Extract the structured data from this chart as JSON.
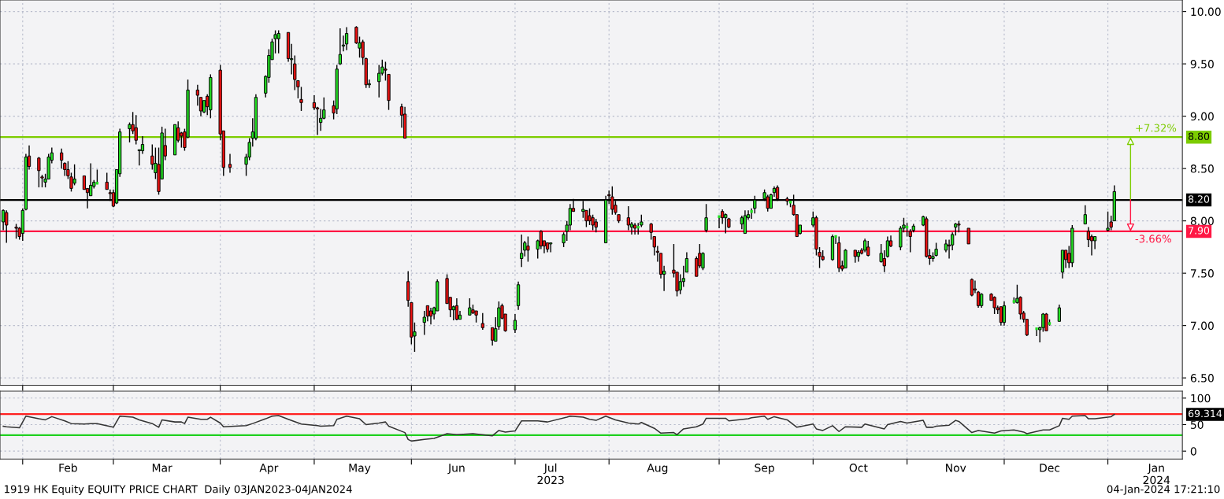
{
  "chart_data": [
    {
      "type": "candlestick",
      "x": [
        "2023-01-26",
        "2023-01-27",
        "2023-01-30",
        "2023-01-31",
        "2023-02-01",
        "2023-02-02",
        "2023-02-03",
        "2023-02-06",
        "2023-02-07",
        "2023-02-08",
        "2023-02-09",
        "2023-02-10",
        "2023-02-13",
        "2023-02-14",
        "2023-02-15",
        "2023-02-16",
        "2023-02-17",
        "2023-02-20",
        "2023-02-21",
        "2023-02-22",
        "2023-02-23",
        "2023-02-24",
        "2023-02-27",
        "2023-02-28",
        "2023-03-01",
        "2023-03-02",
        "2023-03-03",
        "2023-03-06",
        "2023-03-07",
        "2023-03-08",
        "2023-03-09",
        "2023-03-10",
        "2023-03-13",
        "2023-03-14",
        "2023-03-15",
        "2023-03-16",
        "2023-03-17",
        "2023-03-20",
        "2023-03-21",
        "2023-03-22",
        "2023-03-23",
        "2023-03-24",
        "2023-03-27",
        "2023-03-28",
        "2023-03-29",
        "2023-03-30",
        "2023-03-31",
        "2023-04-03",
        "2023-04-04",
        "2023-04-06",
        "2023-04-11",
        "2023-04-12",
        "2023-04-13",
        "2023-04-14",
        "2023-04-17",
        "2023-04-18",
        "2023-04-19",
        "2023-04-20",
        "2023-04-21",
        "2023-04-24",
        "2023-04-25",
        "2023-04-26",
        "2023-04-27",
        "2023-04-28",
        "2023-05-02",
        "2023-05-03",
        "2023-05-04",
        "2023-05-05",
        "2023-05-08",
        "2023-05-09",
        "2023-05-10",
        "2023-05-11",
        "2023-05-12",
        "2023-05-15",
        "2023-05-16",
        "2023-05-17",
        "2023-05-18",
        "2023-05-19",
        "2023-05-22",
        "2023-05-23",
        "2023-05-24",
        "2023-05-25",
        "2023-05-29",
        "2023-05-30",
        "2023-05-31",
        "2023-06-01",
        "2023-06-02",
        "2023-06-05",
        "2023-06-06",
        "2023-06-07",
        "2023-06-08",
        "2023-06-09",
        "2023-06-12",
        "2023-06-13",
        "2023-06-14",
        "2023-06-15",
        "2023-06-16",
        "2023-06-19",
        "2023-06-20",
        "2023-06-21",
        "2023-06-23",
        "2023-06-26",
        "2023-06-27",
        "2023-06-28",
        "2023-06-29",
        "2023-06-30",
        "2023-07-03",
        "2023-07-04",
        "2023-07-05",
        "2023-07-06",
        "2023-07-07",
        "2023-07-10",
        "2023-07-11",
        "2023-07-12",
        "2023-07-13",
        "2023-07-14",
        "2023-07-18",
        "2023-07-19",
        "2023-07-20",
        "2023-07-21",
        "2023-07-24",
        "2023-07-25",
        "2023-07-26",
        "2023-07-27",
        "2023-07-28",
        "2023-07-31",
        "2023-08-01",
        "2023-08-02",
        "2023-08-03",
        "2023-08-04",
        "2023-08-07",
        "2023-08-08",
        "2023-08-09",
        "2023-08-10",
        "2023-08-11",
        "2023-08-14",
        "2023-08-15",
        "2023-08-16",
        "2023-08-17",
        "2023-08-18",
        "2023-08-21",
        "2023-08-22",
        "2023-08-23",
        "2023-08-24",
        "2023-08-25",
        "2023-08-28",
        "2023-08-29",
        "2023-08-30",
        "2023-08-31",
        "2023-09-04",
        "2023-09-05",
        "2023-09-06",
        "2023-09-07",
        "2023-09-11",
        "2023-09-12",
        "2023-09-13",
        "2023-09-14",
        "2023-09-15",
        "2023-09-18",
        "2023-09-19",
        "2023-09-20",
        "2023-09-21",
        "2023-09-22",
        "2023-09-25",
        "2023-09-26",
        "2023-09-27",
        "2023-09-28",
        "2023-09-29",
        "2023-10-03",
        "2023-10-04",
        "2023-10-05",
        "2023-10-06",
        "2023-10-09",
        "2023-10-10",
        "2023-10-11",
        "2023-10-12",
        "2023-10-13",
        "2023-10-16",
        "2023-10-17",
        "2023-10-18",
        "2023-10-19",
        "2023-10-20",
        "2023-10-24",
        "2023-10-25",
        "2023-10-26",
        "2023-10-27",
        "2023-10-30",
        "2023-10-31",
        "2023-11-01",
        "2023-11-02",
        "2023-11-03",
        "2023-11-06",
        "2023-11-07",
        "2023-11-08",
        "2023-11-09",
        "2023-11-10",
        "2023-11-13",
        "2023-11-14",
        "2023-11-15",
        "2023-11-16",
        "2023-11-17",
        "2023-11-20",
        "2023-11-21",
        "2023-11-22",
        "2023-11-23",
        "2023-11-24",
        "2023-11-27",
        "2023-11-28",
        "2023-11-29",
        "2023-11-30",
        "2023-12-01",
        "2023-12-04",
        "2023-12-05",
        "2023-12-06",
        "2023-12-07",
        "2023-12-08",
        "2023-12-11",
        "2023-12-12",
        "2023-12-13",
        "2023-12-14",
        "2023-12-15",
        "2023-12-18",
        "2023-12-19",
        "2023-12-20",
        "2023-12-21",
        "2023-12-22",
        "2023-12-26",
        "2023-12-27",
        "2023-12-28",
        "2023-12-29",
        "2024-01-02",
        "2024-01-03",
        "2024-01-04"
      ],
      "ohlc": [
        [
          7.99,
          8.11,
          7.91,
          8.1
        ],
        [
          8.08,
          8.1,
          7.79,
          7.96
        ],
        [
          7.94,
          7.97,
          7.83,
          7.93
        ],
        [
          7.93,
          7.94,
          7.82,
          7.85
        ],
        [
          7.88,
          8.12,
          7.81,
          8.1
        ],
        [
          8.11,
          8.64,
          8.1,
          8.61
        ],
        [
          8.62,
          8.72,
          8.49,
          8.52
        ],
        [
          8.6,
          8.61,
          8.32,
          8.48
        ],
        [
          8.42,
          8.44,
          8.32,
          8.41
        ],
        [
          8.37,
          8.45,
          8.32,
          8.4
        ],
        [
          8.4,
          8.64,
          8.4,
          8.61
        ],
        [
          8.58,
          8.7,
          8.55,
          8.65
        ],
        [
          8.65,
          8.69,
          8.5,
          8.58
        ],
        [
          8.55,
          8.56,
          8.43,
          8.49
        ],
        [
          8.49,
          8.57,
          8.4,
          8.43
        ],
        [
          8.42,
          8.46,
          8.28,
          8.31
        ],
        [
          8.36,
          8.54,
          8.34,
          8.4
        ],
        [
          8.43,
          8.43,
          8.3,
          8.3
        ],
        [
          8.31,
          8.31,
          8.12,
          8.27
        ],
        [
          8.24,
          8.55,
          8.24,
          8.34
        ],
        [
          8.33,
          8.39,
          8.31,
          8.37
        ],
        [
          8.36,
          8.49,
          8.35,
          8.36
        ],
        [
          8.37,
          8.46,
          8.3,
          8.3
        ],
        [
          8.27,
          8.3,
          8.19,
          8.26
        ],
        [
          8.27,
          8.3,
          8.13,
          8.14
        ],
        [
          8.17,
          8.49,
          8.16,
          8.49
        ],
        [
          8.45,
          8.88,
          8.42,
          8.85
        ],
        [
          8.88,
          8.94,
          8.75,
          8.92
        ],
        [
          8.92,
          9.04,
          8.83,
          8.86
        ],
        [
          8.89,
          9.01,
          8.73,
          8.77
        ],
        [
          8.67,
          8.68,
          8.53,
          8.68
        ],
        [
          8.67,
          8.81,
          8.64,
          8.73
        ],
        [
          8.62,
          8.73,
          8.49,
          8.54
        ],
        [
          8.46,
          8.7,
          8.4,
          8.55
        ],
        [
          8.54,
          8.7,
          8.25,
          8.28
        ],
        [
          8.4,
          8.9,
          8.4,
          8.84
        ],
        [
          8.72,
          8.88,
          8.58,
          8.62
        ],
        [
          8.63,
          8.92,
          8.63,
          8.92
        ],
        [
          8.89,
          8.95,
          8.75,
          8.77
        ],
        [
          8.84,
          8.85,
          8.7,
          8.81
        ],
        [
          8.85,
          8.88,
          8.67,
          8.7
        ],
        [
          8.8,
          9.35,
          8.79,
          9.25
        ],
        [
          9.25,
          9.3,
          9.1,
          9.2
        ],
        [
          9.18,
          9.18,
          9.0,
          9.05
        ],
        [
          9.04,
          9.15,
          9.03,
          9.15
        ],
        [
          9.19,
          9.21,
          9.01,
          9.09
        ],
        [
          9.06,
          9.4,
          8.98,
          9.37
        ],
        [
          9.44,
          9.49,
          8.77,
          8.83
        ],
        [
          8.86,
          8.86,
          8.43,
          8.51
        ],
        [
          8.54,
          8.64,
          8.46,
          8.51
        ],
        [
          8.54,
          8.64,
          8.43,
          8.61
        ],
        [
          8.61,
          8.79,
          8.58,
          8.75
        ],
        [
          8.79,
          8.98,
          8.71,
          8.85
        ],
        [
          8.79,
          9.21,
          8.77,
          9.18
        ],
        [
          9.22,
          9.39,
          9.18,
          9.38
        ],
        [
          9.37,
          9.64,
          9.32,
          9.58
        ],
        [
          9.54,
          9.74,
          9.54,
          9.71
        ],
        [
          9.74,
          9.82,
          9.6,
          9.78
        ],
        [
          9.74,
          9.82,
          9.6,
          9.79
        ],
        [
          9.8,
          9.8,
          9.52,
          9.55
        ],
        [
          9.54,
          9.69,
          9.4,
          9.55
        ],
        [
          9.5,
          9.58,
          9.25,
          9.35
        ],
        [
          9.34,
          9.34,
          9.17,
          9.28
        ],
        [
          9.16,
          9.28,
          9.05,
          9.13
        ],
        [
          9.13,
          9.2,
          9.06,
          9.08
        ],
        [
          9.08,
          9.09,
          8.82,
          9.07
        ],
        [
          8.94,
          9.07,
          8.86,
          8.98
        ],
        [
          8.98,
          9.18,
          8.97,
          9.06
        ],
        [
          9.1,
          9.15,
          8.97,
          9.03
        ],
        [
          9.07,
          9.49,
          9.02,
          9.45
        ],
        [
          9.5,
          9.84,
          9.49,
          9.59
        ],
        [
          9.67,
          9.77,
          9.62,
          9.68
        ],
        [
          9.69,
          9.85,
          9.63,
          9.79
        ],
        [
          9.85,
          9.86,
          9.69,
          9.7
        ],
        [
          9.65,
          9.76,
          9.56,
          9.7
        ],
        [
          9.71,
          9.73,
          9.49,
          9.56
        ],
        [
          9.55,
          9.56,
          9.27,
          9.3
        ],
        [
          9.3,
          9.35,
          9.27,
          9.31
        ],
        [
          9.33,
          9.49,
          9.18,
          9.41
        ],
        [
          9.41,
          9.54,
          9.39,
          9.47
        ],
        [
          9.45,
          9.52,
          9.34,
          9.44
        ],
        [
          9.4,
          9.4,
          9.06,
          9.15
        ],
        [
          9.09,
          9.12,
          8.89,
          9.01
        ],
        [
          9.02,
          9.09,
          8.79,
          8.79
        ],
        [
          7.42,
          7.52,
          7.18,
          7.24
        ],
        [
          7.22,
          7.22,
          6.82,
          6.89
        ],
        [
          6.9,
          7.03,
          6.75,
          6.94
        ],
        [
          7.03,
          7.14,
          6.91,
          7.08
        ],
        [
          7.19,
          7.19,
          7.04,
          7.09
        ],
        [
          7.14,
          7.17,
          7.01,
          7.09
        ],
        [
          7.11,
          7.18,
          7.06,
          7.17
        ],
        [
          7.14,
          7.44,
          7.14,
          7.42
        ],
        [
          7.45,
          7.49,
          7.21,
          7.21
        ],
        [
          7.27,
          7.27,
          7.08,
          7.15
        ],
        [
          7.15,
          7.19,
          7.05,
          7.18
        ],
        [
          7.19,
          7.26,
          7.05,
          7.06
        ],
        [
          7.06,
          7.14,
          7.06,
          7.1
        ],
        [
          7.1,
          7.26,
          7.1,
          7.17
        ],
        [
          7.15,
          7.2,
          7.11,
          7.12
        ],
        [
          7.14,
          7.14,
          7.03,
          7.1
        ],
        [
          7.02,
          7.12,
          6.96,
          6.98
        ],
        [
          6.98,
          6.98,
          6.81,
          6.86
        ],
        [
          6.85,
          7.08,
          6.85,
          6.97
        ],
        [
          6.99,
          7.23,
          6.96,
          7.17
        ],
        [
          7.19,
          7.21,
          7.06,
          7.07
        ],
        [
          7.11,
          7.11,
          6.94,
          6.95
        ],
        [
          6.96,
          7.11,
          6.93,
          7.05
        ],
        [
          7.19,
          7.42,
          7.15,
          7.39
        ],
        [
          7.64,
          7.87,
          7.56,
          7.69
        ],
        [
          7.72,
          7.81,
          7.66,
          7.79
        ],
        [
          7.76,
          7.85,
          7.61,
          7.72
        ],
        [
          7.73,
          7.82,
          7.64,
          7.81
        ],
        [
          7.9,
          7.91,
          7.73,
          7.76
        ],
        [
          7.81,
          7.81,
          7.69,
          7.76
        ],
        [
          7.79,
          7.79,
          7.7,
          7.73
        ],
        [
          7.78,
          7.79,
          7.7,
          7.79
        ],
        [
          7.79,
          7.89,
          7.75,
          7.87
        ],
        [
          7.9,
          8.0,
          7.81,
          7.96
        ],
        [
          7.96,
          8.16,
          7.91,
          8.12
        ],
        [
          8.12,
          8.21,
          8.09,
          8.09
        ],
        [
          8.09,
          8.19,
          8.03,
          8.11
        ],
        [
          8.1,
          8.1,
          7.94,
          8.0
        ],
        [
          8.05,
          8.12,
          7.96,
          8.0
        ],
        [
          8.03,
          8.06,
          7.91,
          7.96
        ],
        [
          7.99,
          8.02,
          7.89,
          7.94
        ],
        [
          7.79,
          8.24,
          7.79,
          8.2
        ],
        [
          8.25,
          8.29,
          8.16,
          8.24
        ],
        [
          8.23,
          8.33,
          8.06,
          8.11
        ],
        [
          8.15,
          8.19,
          8.06,
          8.08
        ],
        [
          8.06,
          8.06,
          7.98,
          8.0
        ],
        [
          8.03,
          8.14,
          7.91,
          7.96
        ],
        [
          7.94,
          7.99,
          7.87,
          7.97
        ],
        [
          7.96,
          7.98,
          7.87,
          7.93
        ],
        [
          7.94,
          7.98,
          7.87,
          7.94
        ],
        [
          7.96,
          8.06,
          7.94,
          7.99
        ],
        [
          7.97,
          7.98,
          7.82,
          7.89
        ],
        [
          7.85,
          7.85,
          7.67,
          7.75
        ],
        [
          7.71,
          7.76,
          7.61,
          7.7
        ],
        [
          7.69,
          7.69,
          7.45,
          7.49
        ],
        [
          7.49,
          7.57,
          7.33,
          7.52
        ],
        [
          7.53,
          7.78,
          7.46,
          7.5
        ],
        [
          7.51,
          7.51,
          7.28,
          7.33
        ],
        [
          7.34,
          7.49,
          7.3,
          7.42
        ],
        [
          7.42,
          7.57,
          7.37,
          7.45
        ],
        [
          7.51,
          7.7,
          7.51,
          7.64
        ],
        [
          7.64,
          7.66,
          7.47,
          7.47
        ],
        [
          7.69,
          7.78,
          7.55,
          7.57
        ],
        [
          7.55,
          7.7,
          7.53,
          7.69
        ],
        [
          7.91,
          8.16,
          7.89,
          8.03
        ],
        [
          8.04,
          8.05,
          7.93,
          8.04
        ],
        [
          8.09,
          8.11,
          7.97,
          8.03
        ],
        [
          8.03,
          8.07,
          7.88,
          8.06
        ],
        [
          8.02,
          8.03,
          7.93,
          7.94
        ],
        [
          7.97,
          8.05,
          7.92,
          8.03
        ],
        [
          7.88,
          8.1,
          7.88,
          8.05
        ],
        [
          8.03,
          8.1,
          8.01,
          8.06
        ],
        [
          8.09,
          8.12,
          8.02,
          8.09
        ],
        [
          8.12,
          8.24,
          8.07,
          8.2
        ],
        [
          8.21,
          8.3,
          8.19,
          8.27
        ],
        [
          8.23,
          8.25,
          8.09,
          8.12
        ],
        [
          8.12,
          8.26,
          8.12,
          8.25
        ],
        [
          8.27,
          8.33,
          8.23,
          8.31
        ],
        [
          8.32,
          8.34,
          8.19,
          8.21
        ],
        [
          8.21,
          8.23,
          8.15,
          8.19
        ],
        [
          8.18,
          8.2,
          8.13,
          8.18
        ],
        [
          8.15,
          8.25,
          8.05,
          8.06
        ],
        [
          8.06,
          8.06,
          7.85,
          7.85
        ],
        [
          7.88,
          7.96,
          7.87,
          7.96
        ],
        [
          7.96,
          8.09,
          7.94,
          8.03
        ],
        [
          8.03,
          8.05,
          7.67,
          7.73
        ],
        [
          7.7,
          7.75,
          7.55,
          7.66
        ],
        [
          7.66,
          7.72,
          7.62,
          7.63
        ],
        [
          7.63,
          7.87,
          7.62,
          7.85
        ],
        [
          7.85,
          7.86,
          7.78,
          7.85
        ],
        [
          7.79,
          7.85,
          7.51,
          7.55
        ],
        [
          7.57,
          7.62,
          7.52,
          7.54
        ],
        [
          7.55,
          7.73,
          7.55,
          7.72
        ],
        [
          7.72,
          7.72,
          7.6,
          7.66
        ],
        [
          7.66,
          7.72,
          7.61,
          7.7
        ],
        [
          7.72,
          7.74,
          7.68,
          7.69
        ],
        [
          7.72,
          7.83,
          7.7,
          7.81
        ],
        [
          7.75,
          7.81,
          7.66,
          7.67
        ],
        [
          7.61,
          7.78,
          7.6,
          7.69
        ],
        [
          7.64,
          7.72,
          7.51,
          7.57
        ],
        [
          7.66,
          7.85,
          7.65,
          7.81
        ],
        [
          7.81,
          7.86,
          7.75,
          7.76
        ],
        [
          7.75,
          7.95,
          7.72,
          7.93
        ],
        [
          7.93,
          8.03,
          7.89,
          7.96
        ],
        [
          7.94,
          7.98,
          7.85,
          7.94
        ],
        [
          7.9,
          7.92,
          7.7,
          7.85
        ],
        [
          7.91,
          7.97,
          7.89,
          7.95
        ],
        [
          7.96,
          8.05,
          7.95,
          8.04
        ],
        [
          8.02,
          8.04,
          7.65,
          7.66
        ],
        [
          7.67,
          7.73,
          7.58,
          7.64
        ],
        [
          7.64,
          7.7,
          7.61,
          7.66
        ],
        [
          7.67,
          7.79,
          7.66,
          7.73
        ],
        [
          7.72,
          7.82,
          7.7,
          7.78
        ],
        [
          7.77,
          7.82,
          7.64,
          7.76
        ],
        [
          7.77,
          7.89,
          7.72,
          7.87
        ],
        [
          7.94,
          7.98,
          7.86,
          7.97
        ],
        [
          7.97,
          8.0,
          7.89,
          7.96
        ],
        [
          7.93,
          7.93,
          7.78,
          7.78
        ],
        [
          7.44,
          7.45,
          7.28,
          7.29
        ],
        [
          7.35,
          7.43,
          7.31,
          7.34
        ],
        [
          7.32,
          7.33,
          7.17,
          7.19
        ],
        [
          7.19,
          7.31,
          7.17,
          7.3
        ],
        [
          7.3,
          7.31,
          7.24,
          7.24
        ],
        [
          7.27,
          7.28,
          7.11,
          7.17
        ],
        [
          7.17,
          7.19,
          7.11,
          7.15
        ],
        [
          7.18,
          7.18,
          7.0,
          7.03
        ],
        [
          7.03,
          7.23,
          7.0,
          7.19
        ],
        [
          7.23,
          7.27,
          7.21,
          7.23
        ],
        [
          7.22,
          7.39,
          7.21,
          7.26
        ],
        [
          7.27,
          7.28,
          7.06,
          7.11
        ],
        [
          7.12,
          7.14,
          7.03,
          7.06
        ],
        [
          7.06,
          7.06,
          6.9,
          6.91
        ],
        [
          6.97,
          6.98,
          6.9,
          6.97
        ],
        [
          6.96,
          6.99,
          6.84,
          6.98
        ],
        [
          6.98,
          7.12,
          6.94,
          7.11
        ],
        [
          7.11,
          7.12,
          6.95,
          6.95
        ],
        [
          7.02,
          7.06,
          7.0,
          7.02
        ],
        [
          7.04,
          7.2,
          7.04,
          7.17
        ],
        [
          7.51,
          7.72,
          7.45,
          7.72
        ],
        [
          7.72,
          7.72,
          7.55,
          7.63
        ],
        [
          7.69,
          7.76,
          7.55,
          7.6
        ],
        [
          7.6,
          7.96,
          7.56,
          7.93
        ],
        [
          7.97,
          8.15,
          7.97,
          8.06
        ],
        [
          7.9,
          7.94,
          7.75,
          7.82
        ],
        [
          7.85,
          7.87,
          7.67,
          7.81
        ],
        [
          7.81,
          7.85,
          7.73,
          7.85
        ],
        [
          7.91,
          8.09,
          7.9,
          7.93
        ],
        [
          7.99,
          8.05,
          7.91,
          7.94
        ],
        [
          8.0,
          8.34,
          8.0,
          8.28
        ]
      ],
      "xlim": [
        "2023-01-25",
        "2024-01-25"
      ],
      "xticks": [
        {
          "value": "2023-02-01",
          "label": null
        },
        {
          "value": "2023-03-01",
          "label": null
        },
        {
          "value": "2023-04-03",
          "label": null
        },
        {
          "value": "2023-05-02",
          "label": null
        },
        {
          "value": "2023-06-01",
          "label": null
        },
        {
          "value": "2023-07-03",
          "label": null
        },
        {
          "value": "2023-08-01",
          "label": null
        },
        {
          "value": "2023-09-04",
          "label": null
        },
        {
          "value": "2023-10-03",
          "label": null
        },
        {
          "value": "2023-11-01",
          "label": null
        },
        {
          "value": "2023-12-01",
          "label": null
        },
        {
          "value": "2024-01-02",
          "label": null
        }
      ],
      "ylim": [
        6.43,
        10.11
      ],
      "yticks": [
        {
          "value": 6.5,
          "label": "6.50"
        },
        {
          "value": 7,
          "label": "7.00"
        },
        {
          "value": 7.5,
          "label": "7.50"
        },
        {
          "value": 8,
          "label": "8.00"
        },
        {
          "value": 8.5,
          "label": "8.50"
        },
        {
          "value": 9,
          "label": "9.00"
        },
        {
          "value": 9.5,
          "label": "9.50"
        },
        {
          "value": 10,
          "label": "10.00"
        }
      ],
      "grid": true,
      "tick_labels": "y",
      "ref_lines": [
        {
          "axis": "y",
          "value": 8.8,
          "label": "8.80",
          "color": "#7ccc00"
        },
        {
          "axis": "y",
          "value": 8.2,
          "label": "8.20",
          "color": "#000000"
        },
        {
          "axis": "y",
          "value": 7.9,
          "label": "7.90",
          "color": "#ff1744"
        }
      ],
      "annotations": [
        {
          "text": "+7.32%",
          "x": "2024-01-09",
          "y": 8.8
        },
        {
          "text": "-3.66%",
          "x": "2024-01-09",
          "y": 7.9
        },
        "1919 HK Equity EQUITY PRICE CHART  Daily 03JAN2023-04JAN2024",
        "04-Jan-2024 17:21:10"
      ]
    },
    {
      "type": "line",
      "series": [
        {
          "color": "#333333",
          "x": [
            "2023-01-26",
            "2023-01-27",
            "2023-01-31",
            "2023-02-02",
            "2023-02-06",
            "2023-02-08",
            "2023-02-10",
            "2023-02-14",
            "2023-02-16",
            "2023-02-20",
            "2023-02-22",
            "2023-02-24",
            "2023-03-01",
            "2023-03-03",
            "2023-03-07",
            "2023-03-09",
            "2023-03-13",
            "2023-03-15",
            "2023-03-16",
            "2023-03-20",
            "2023-03-22",
            "2023-03-23",
            "2023-03-24",
            "2023-03-28",
            "2023-03-30",
            "2023-03-31",
            "2023-04-03",
            "2023-04-04",
            "2023-04-11",
            "2023-04-13",
            "2023-04-17",
            "2023-04-19",
            "2023-04-21",
            "2023-04-24",
            "2023-04-28",
            "2023-05-03",
            "2023-05-04",
            "2023-05-08",
            "2023-05-09",
            "2023-05-12",
            "2023-05-16",
            "2023-05-18",
            "2023-05-22",
            "2023-05-24",
            "2023-05-25",
            "2023-05-30",
            "2023-05-31",
            "2023-06-01",
            "2023-06-05",
            "2023-06-08",
            "2023-06-12",
            "2023-06-15",
            "2023-06-20",
            "2023-06-26",
            "2023-06-28",
            "2023-06-30",
            "2023-07-03",
            "2023-07-05",
            "2023-07-10",
            "2023-07-13",
            "2023-07-19",
            "2023-07-20",
            "2023-07-24",
            "2023-07-26",
            "2023-07-28",
            "2023-07-31",
            "2023-08-03",
            "2023-08-07",
            "2023-08-10",
            "2023-08-11",
            "2023-08-15",
            "2023-08-17",
            "2023-08-21",
            "2023-08-22",
            "2023-08-24",
            "2023-08-28",
            "2023-08-30",
            "2023-08-31",
            "2023-09-06",
            "2023-09-07",
            "2023-09-13",
            "2023-09-14",
            "2023-09-18",
            "2023-09-19",
            "2023-09-21",
            "2023-09-25",
            "2023-09-28",
            "2023-10-03",
            "2023-10-04",
            "2023-10-06",
            "2023-10-09",
            "2023-10-11",
            "2023-10-13",
            "2023-10-18",
            "2023-10-19",
            "2023-10-25",
            "2023-10-26",
            "2023-10-30",
            "2023-11-01",
            "2023-11-06",
            "2023-11-07",
            "2023-11-09",
            "2023-11-10",
            "2023-11-14",
            "2023-11-16",
            "2023-11-17",
            "2023-11-21",
            "2023-11-23",
            "2023-11-28",
            "2023-11-30",
            "2023-12-04",
            "2023-12-07",
            "2023-12-08",
            "2023-12-13",
            "2023-12-15",
            "2023-12-18",
            "2023-12-19",
            "2023-12-21",
            "2023-12-22",
            "2023-12-26",
            "2023-12-27",
            "2023-12-29",
            "2024-01-03",
            "2024-01-04"
          ],
          "values": [
            47,
            46,
            44,
            66,
            61,
            59,
            65,
            57,
            52,
            51,
            52,
            52,
            45,
            66,
            64,
            59,
            52,
            45,
            59,
            55,
            55,
            52,
            64,
            60,
            60,
            64,
            53,
            46,
            48,
            52,
            61,
            66,
            67,
            60,
            51,
            48,
            47,
            48,
            60,
            66,
            61,
            50,
            53,
            55,
            47,
            35,
            22,
            19,
            22,
            24,
            33,
            31,
            33,
            29,
            39,
            36,
            38,
            57,
            57,
            55,
            64,
            66,
            64,
            60,
            58,
            66,
            59,
            53,
            51,
            54,
            43,
            34,
            35,
            31,
            42,
            46,
            51,
            62,
            62,
            57,
            61,
            63,
            66,
            60,
            65,
            59,
            45,
            51,
            42,
            39,
            48,
            37,
            46,
            45,
            51,
            42,
            50,
            56,
            53,
            58,
            45,
            45,
            47,
            49,
            58,
            56,
            35,
            39,
            34,
            38,
            40,
            36,
            33,
            40,
            40,
            48,
            62,
            60,
            66,
            67,
            61,
            61,
            65,
            69.314
          ]
        }
      ],
      "xlim": [
        "2023-01-25",
        "2024-01-25"
      ],
      "xticks": [
        {
          "value": "2023-02-01",
          "label": null
        },
        {
          "value": "2023-03-01",
          "label": null
        },
        {
          "value": "2023-04-03",
          "label": null
        },
        {
          "value": "2023-05-02",
          "label": null
        },
        {
          "value": "2023-06-01",
          "label": null
        },
        {
          "value": "2023-07-03",
          "label": null
        },
        {
          "value": "2023-08-01",
          "label": null
        },
        {
          "value": "2023-09-04",
          "label": null
        },
        {
          "value": "2023-10-03",
          "label": null
        },
        {
          "value": "2023-11-01",
          "label": null
        },
        {
          "value": "2023-12-01",
          "label": null
        },
        {
          "value": "2024-01-02",
          "label": null
        },
        {
          "value": "2023-02-15",
          "label": "Feb"
        },
        {
          "value": "2023-03-16",
          "label": "Mar"
        },
        {
          "value": "2023-04-18",
          "label": "Apr"
        },
        {
          "value": "2023-05-16",
          "label": "May"
        },
        {
          "value": "2023-06-15",
          "label": "Jun"
        },
        {
          "value": "2023-07-14",
          "label": "Jul\n2023"
        },
        {
          "value": "2023-08-16",
          "label": "Aug"
        },
        {
          "value": "2023-09-18",
          "label": "Sep"
        },
        {
          "value": "2023-10-17",
          "label": "Oct"
        },
        {
          "value": "2023-11-16",
          "label": "Nov"
        },
        {
          "value": "2023-12-15",
          "label": "Dec"
        },
        {
          "value": "2024-01-17",
          "label": "Jan\n2024"
        }
      ],
      "ylim": [
        -15,
        113
      ],
      "yticks": [
        0,
        50,
        100
      ],
      "grid": true,
      "ref_lines": [
        {
          "axis": "y",
          "value": 70,
          "color": "#ff2020"
        },
        {
          "axis": "y",
          "value": 30,
          "color": "#20d020"
        }
      ],
      "annotations": [
        "69.314"
      ]
    }
  ]
}
